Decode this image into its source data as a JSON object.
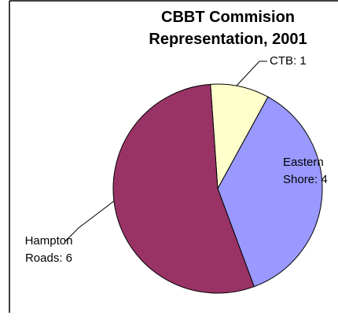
{
  "chart_data": {
    "type": "pie",
    "title": "CBBT Commision Representation, 2001",
    "values": [
      1,
      4,
      6
    ],
    "value_labels": [
      "CTB: 1",
      "Eastern Shore: 4",
      "Hampton Roads: 6"
    ],
    "colors": [
      "#ffffcc",
      "#9999ff",
      "#993366"
    ]
  }
}
